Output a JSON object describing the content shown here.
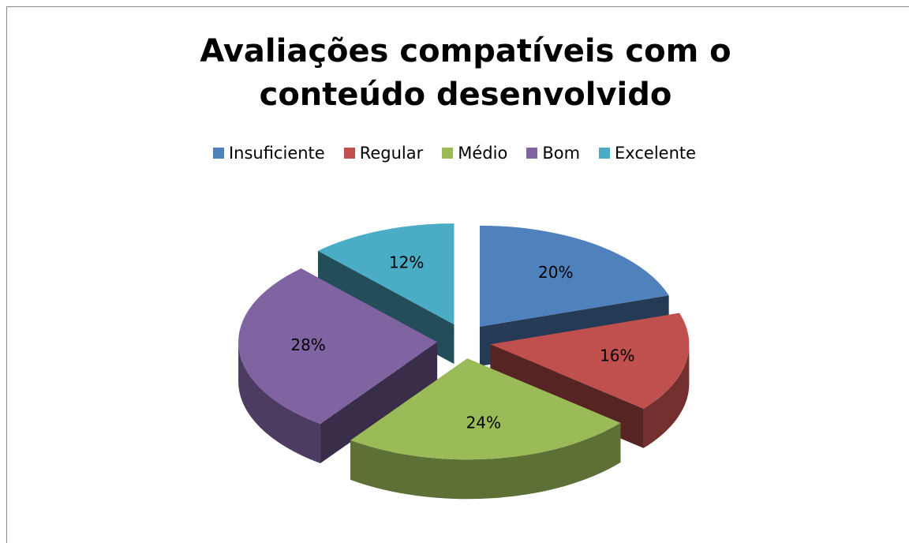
{
  "chart_data": {
    "type": "pie",
    "title": "Avaliações compatíveis com o conteúdo desenvolvido",
    "categories": [
      "Insuficiente",
      "Regular",
      "Médio",
      "Bom",
      "Excelente"
    ],
    "values": [
      20,
      16,
      24,
      28,
      12
    ],
    "value_labels": [
      "20%",
      "16%",
      "24%",
      "28%",
      "12%"
    ],
    "colors": [
      "#4f81bd",
      "#c0504d",
      "#9bbb59",
      "#8064a2",
      "#4bacc6"
    ],
    "legend": "top",
    "exploded": true,
    "3d": true
  }
}
